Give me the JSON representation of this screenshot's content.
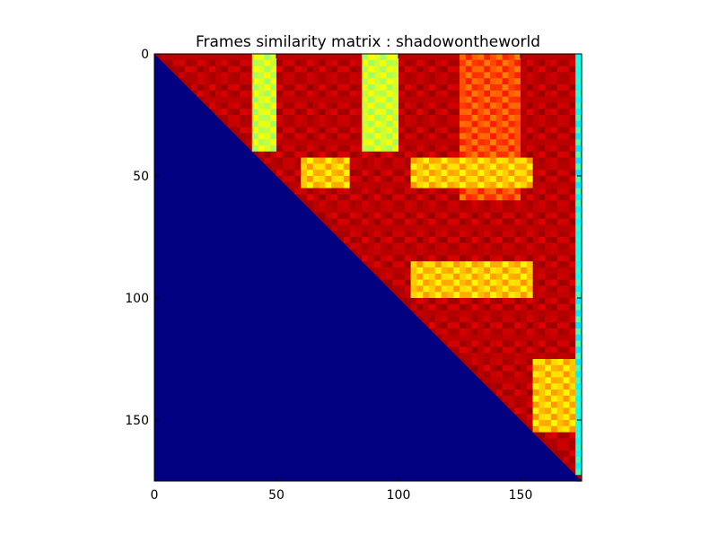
{
  "chart_data": {
    "type": "heatmap",
    "title": "Frames similarity matrix : shadowontheworld",
    "xlabel": "",
    "ylabel": "",
    "xlim": [
      0,
      175
    ],
    "ylim": [
      0,
      175
    ],
    "y_axis_inverted": true,
    "x_ticks": [
      0,
      50,
      100,
      150
    ],
    "y_ticks": [
      0,
      50,
      100,
      150
    ],
    "x_tick_labels": [
      "0",
      "50",
      "100",
      "150"
    ],
    "y_tick_labels": [
      "0",
      "50",
      "100",
      "150"
    ],
    "grid": false,
    "colormap": "jet",
    "matrix_size": 175,
    "lower_triangle_value": "min",
    "high_similarity_regions": [
      {
        "rows": [
          0,
          40
        ],
        "cols": [
          38,
          50
        ],
        "level": "yellow-cyan"
      },
      {
        "rows": [
          0,
          40
        ],
        "cols": [
          83,
          100
        ],
        "level": "yellow-cyan"
      },
      {
        "rows": [
          0,
          60
        ],
        "cols": [
          125,
          150
        ],
        "level": "orange"
      },
      {
        "rows": [
          42,
          55
        ],
        "cols": [
          60,
          80
        ],
        "level": "yellow"
      },
      {
        "rows": [
          42,
          55
        ],
        "cols": [
          103,
          155
        ],
        "level": "yellow"
      },
      {
        "rows": [
          85,
          100
        ],
        "cols": [
          103,
          155
        ],
        "level": "yellow"
      },
      {
        "rows": [
          125,
          155
        ],
        "cols": [
          155,
          172
        ],
        "level": "yellow"
      },
      {
        "rows": [
          0,
          175
        ],
        "cols": [
          172,
          175
        ],
        "level": "cyan"
      }
    ]
  }
}
